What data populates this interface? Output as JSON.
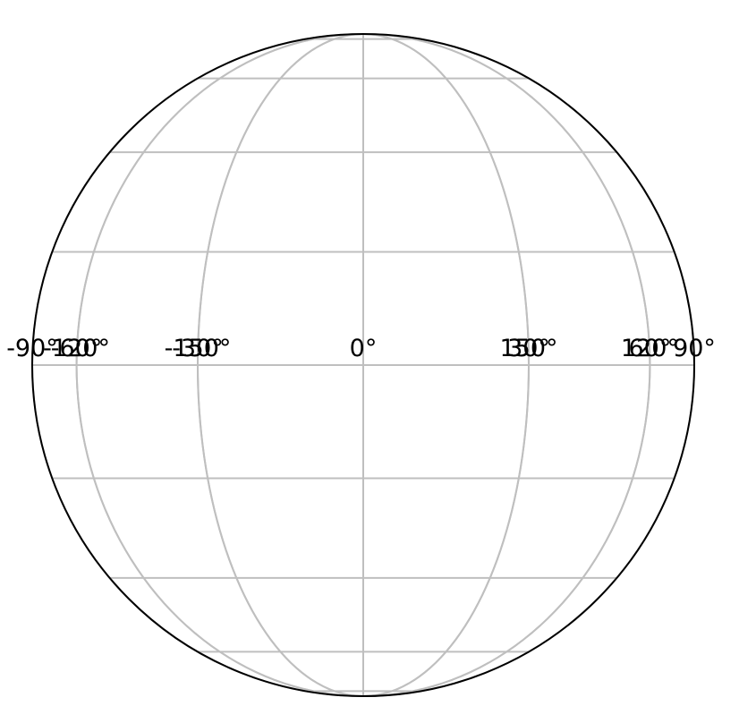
{
  "map": {
    "projection": "orthographic",
    "central_longitude": 0,
    "central_latitude": 0,
    "colors": {
      "background": "#ffffff",
      "boundary": "#000000",
      "gridlines": "#bfbfbf",
      "labels": "#000000"
    },
    "gridlines": {
      "meridians_deg": [
        -180,
        -150,
        -120,
        -90,
        -60,
        -30,
        0,
        30,
        60,
        90,
        120,
        150
      ],
      "parallels_deg": [
        -80,
        -60,
        -40,
        -20,
        0,
        20,
        40,
        60,
        80
      ]
    },
    "longitude_labels": [
      {
        "lon": -150,
        "text": "-150°"
      },
      {
        "lon": -120,
        "text": "-120°"
      },
      {
        "lon": -90,
        "text": "-90°"
      },
      {
        "lon": -60,
        "text": "-60°"
      },
      {
        "lon": -30,
        "text": "-30°"
      },
      {
        "lon": 0,
        "text": "0°"
      },
      {
        "lon": 30,
        "text": "30°"
      },
      {
        "lon": 60,
        "text": "60°"
      },
      {
        "lon": 90,
        "text": "90°"
      },
      {
        "lon": 120,
        "text": "120°"
      },
      {
        "lon": 150,
        "text": "150°"
      }
    ]
  }
}
